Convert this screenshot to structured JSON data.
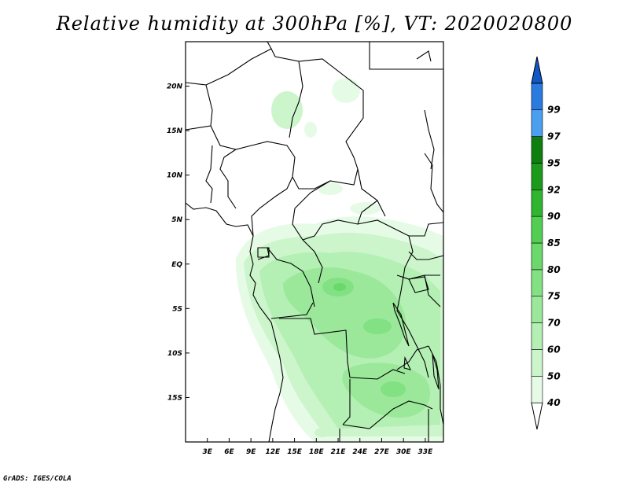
{
  "title": "Relative humidity at 300hPa [%], VT: 2020020800",
  "credit": "GrADS: IGES/COLA",
  "map": {
    "lon_range": [
      0,
      35.5
    ],
    "lat_range": [
      -20,
      25
    ],
    "lat_ticks": [
      {
        "value": 20,
        "label": "20N"
      },
      {
        "value": 15,
        "label": "15N"
      },
      {
        "value": 10,
        "label": "10N"
      },
      {
        "value": 5,
        "label": "5N"
      },
      {
        "value": 0,
        "label": "EQ"
      },
      {
        "value": -5,
        "label": "5S"
      },
      {
        "value": -10,
        "label": "10S"
      },
      {
        "value": -15,
        "label": "15S"
      }
    ],
    "lon_ticks": [
      {
        "value": 3,
        "label": "3E"
      },
      {
        "value": 6,
        "label": "6E"
      },
      {
        "value": 9,
        "label": "9E"
      },
      {
        "value": 12,
        "label": "12E"
      },
      {
        "value": 15,
        "label": "15E"
      },
      {
        "value": 18,
        "label": "18E"
      },
      {
        "value": 21,
        "label": "21E"
      },
      {
        "value": 24,
        "label": "24E"
      },
      {
        "value": 27,
        "label": "27E"
      },
      {
        "value": 30,
        "label": "30E"
      },
      {
        "value": 33,
        "label": "33E"
      }
    ]
  },
  "colorbar": {
    "levels": [
      "40",
      "50",
      "60",
      "70",
      "75",
      "80",
      "85",
      "90",
      "92",
      "95",
      "97",
      "99"
    ],
    "colors": [
      "#ffffff",
      "#e6fbe6",
      "#ccf5cc",
      "#b4efb4",
      "#9be89b",
      "#82e182",
      "#6ad86a",
      "#52cf52",
      "#2fb52f",
      "#1c9a1c",
      "#0e7e0e",
      "#4a9ff0",
      "#2a7be0",
      "#1058c8"
    ]
  }
}
